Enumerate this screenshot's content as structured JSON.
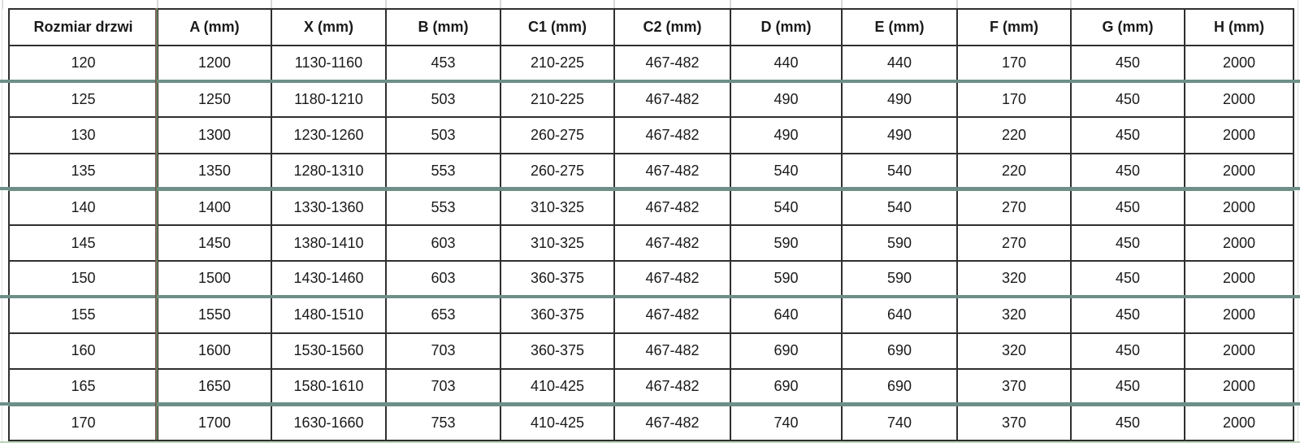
{
  "table": {
    "headers": [
      "Rozmiar drzwi",
      "A (mm)",
      "X (mm)",
      "B (mm)",
      "C1 (mm)",
      "C2 (mm)",
      "D (mm)",
      "E (mm)",
      "F (mm)",
      "G (mm)",
      "H (mm)"
    ],
    "rows": [
      [
        "120",
        "1200",
        "1130-1160",
        "453",
        "210-225",
        "467-482",
        "440",
        "440",
        "170",
        "450",
        "2000"
      ],
      [
        "125",
        "1250",
        "1180-1210",
        "503",
        "210-225",
        "467-482",
        "490",
        "490",
        "170",
        "450",
        "2000"
      ],
      [
        "130",
        "1300",
        "1230-1260",
        "503",
        "260-275",
        "467-482",
        "490",
        "490",
        "220",
        "450",
        "2000"
      ],
      [
        "135",
        "1350",
        "1280-1310",
        "553",
        "260-275",
        "467-482",
        "540",
        "540",
        "220",
        "450",
        "2000"
      ],
      [
        "140",
        "1400",
        "1330-1360",
        "553",
        "310-325",
        "467-482",
        "540",
        "540",
        "270",
        "450",
        "2000"
      ],
      [
        "145",
        "1450",
        "1380-1410",
        "603",
        "310-325",
        "467-482",
        "590",
        "590",
        "270",
        "450",
        "2000"
      ],
      [
        "150",
        "1500",
        "1430-1460",
        "603",
        "360-375",
        "467-482",
        "590",
        "590",
        "320",
        "450",
        "2000"
      ],
      [
        "155",
        "1550",
        "1480-1510",
        "653",
        "360-375",
        "467-482",
        "640",
        "640",
        "320",
        "450",
        "2000"
      ],
      [
        "160",
        "1600",
        "1530-1560",
        "703",
        "360-375",
        "467-482",
        "690",
        "690",
        "320",
        "450",
        "2000"
      ],
      [
        "165",
        "1650",
        "1580-1610",
        "703",
        "410-425",
        "467-482",
        "690",
        "690",
        "370",
        "450",
        "2000"
      ],
      [
        "170",
        "1700",
        "1630-1660",
        "753",
        "410-425",
        "467-482",
        "740",
        "740",
        "370",
        "450",
        "2000"
      ]
    ],
    "teal_divider_after_rows": [
      0,
      3,
      6,
      9
    ]
  },
  "colors": {
    "background": "#ffffff",
    "text": "#1a1a1a",
    "border_dark": "#2f2f2f",
    "accent_teal": "#6d8f88",
    "accent_sage": "#7e9c8e",
    "accent_green": "#6f9468",
    "accent_maroon": "#74524e",
    "hairline_green": "#b7d3b8",
    "gridline_gray": "#d7d7d7"
  }
}
